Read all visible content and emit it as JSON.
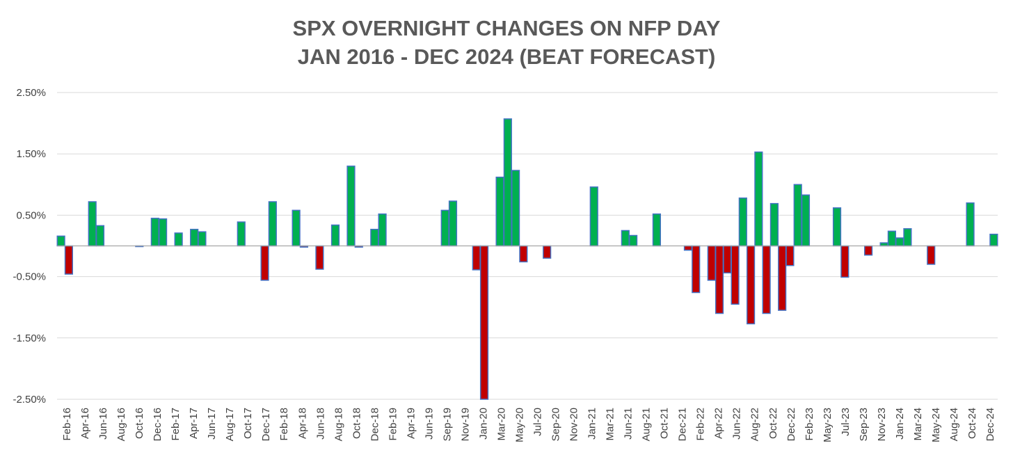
{
  "chart_data": {
    "type": "bar",
    "title_lines": [
      "SPX OVERNIGHT CHANGES ON NFP DAY",
      "JAN 2016 - DEC 2024 (BEAT FORECAST)"
    ],
    "ylim": [
      -2.5,
      2.5
    ],
    "yticks": [
      2.5,
      1.5,
      0.5,
      -0.5,
      -1.5,
      -2.5
    ],
    "ytick_labels": [
      "2.50%",
      "1.50%",
      "0.50%",
      "-0.50%",
      "-1.50%",
      "-2.50%"
    ],
    "positive_color": "#00b050",
    "negative_color": "#c00000",
    "bar_edge_color": "#4472c4",
    "xtick_labels": [
      "Feb-16",
      "Apr-16",
      "Jun-16",
      "Aug-16",
      "Oct-16",
      "Dec-16",
      "Feb-17",
      "Apr-17",
      "Jun-17",
      "Aug-17",
      "Oct-17",
      "Dec-17",
      "Feb-18",
      "Apr-18",
      "Jun-18",
      "Aug-18",
      "Oct-18",
      "Dec-18",
      "Feb-19",
      "Apr-19",
      "Jun-19",
      "Sep-19",
      "Nov-19",
      "Jan-20",
      "Mar-20",
      "May-20",
      "Jul-20",
      "Sep-20",
      "Nov-20",
      "Jan-21",
      "Mar-21",
      "Jun-21",
      "Aug-21",
      "Oct-21",
      "Dec-21",
      "Feb-22",
      "Apr-22",
      "Jun-22",
      "Aug-22",
      "Oct-22",
      "Dec-22",
      "Feb-23",
      "May-23",
      "Jul-23",
      "Sep-23",
      "Nov-23",
      "Jan-24",
      "Mar-24",
      "May-24",
      "Aug-24",
      "Oct-24",
      "Dec-24"
    ],
    "values": [
      0.16,
      -0.46,
      0,
      0,
      0.72,
      0.33,
      0,
      0,
      0,
      0,
      -0.01,
      0,
      0.45,
      0.44,
      0,
      0.21,
      0,
      0.27,
      0.23,
      0,
      0,
      0,
      0,
      0.39,
      0,
      0,
      -0.56,
      0.72,
      0,
      0,
      0.58,
      -0.02,
      0,
      -0.38,
      0,
      0.34,
      0,
      1.3,
      -0.02,
      0,
      0.27,
      0.52,
      0,
      0,
      0,
      0,
      0,
      0,
      0,
      0.58,
      0.73,
      0,
      0,
      -0.39,
      -2.5,
      0,
      1.12,
      2.07,
      1.23,
      -0.26,
      0,
      0,
      -0.2,
      0,
      0,
      0,
      0,
      0,
      0.96,
      0,
      0,
      0,
      0.25,
      0.17,
      0,
      0,
      0.52,
      0,
      0,
      0,
      -0.07,
      -0.76,
      0,
      -0.56,
      -1.1,
      -0.44,
      -0.95,
      0.78,
      -1.27,
      1.53,
      -1.1,
      0.69,
      -1.05,
      -0.32,
      1.0,
      0.83,
      0,
      0,
      0,
      0.62,
      -0.51,
      0,
      0,
      -0.15,
      0,
      0.05,
      0.24,
      0.13,
      0.28,
      0,
      0,
      -0.3,
      0,
      0,
      0,
      0,
      0.7,
      0,
      0,
      0.19
    ]
  }
}
